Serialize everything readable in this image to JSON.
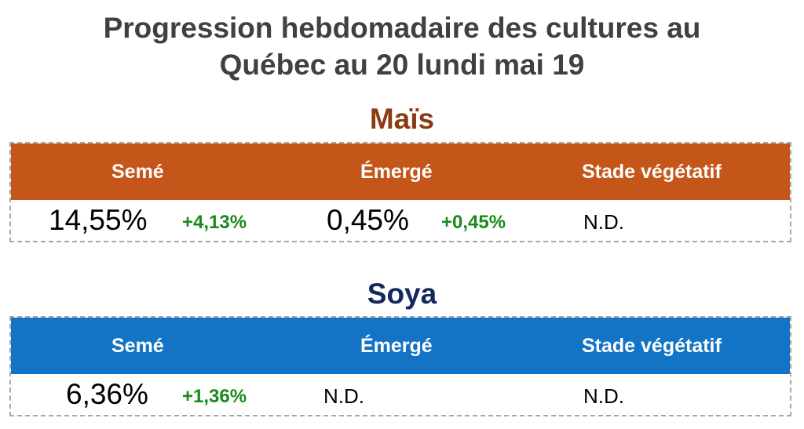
{
  "title": {
    "line1": "Progression hebdomadaire des cultures au",
    "line2": "Québec au 20 lundi mai 19"
  },
  "mais": {
    "name": "Maïs",
    "headers": {
      "seme": "Semé",
      "emerge": "Émergé",
      "stade": "Stade végétatif"
    },
    "values": {
      "seme": "14,55%",
      "seme_delta": "+4,13%",
      "emerge": "0,45%",
      "emerge_delta": "+0,45%",
      "stade": "N.D."
    }
  },
  "soya": {
    "name": "Soya",
    "headers": {
      "seme": "Semé",
      "emerge": "Émergé",
      "stade": "Stade végétatif"
    },
    "values": {
      "seme": "6,36%",
      "seme_delta": "+1,36%",
      "emerge": "N.D.",
      "stade": "N.D."
    }
  },
  "colors": {
    "title": "#404040",
    "mais_title": "#8a3b13",
    "soya_title": "#15285e",
    "mais_header": "#c5561a",
    "soya_header": "#1373c4",
    "delta": "#1a8a1a",
    "border": "#a6a6a6"
  }
}
